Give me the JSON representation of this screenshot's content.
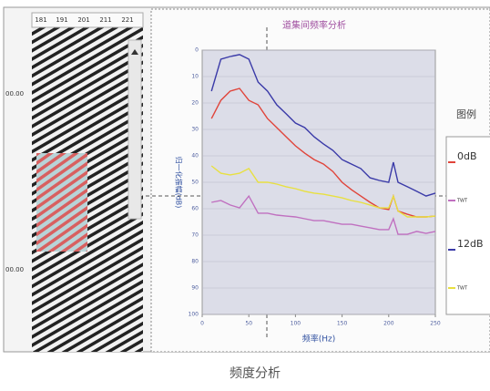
{
  "seismic": {
    "trace_labels": [
      "181",
      "191",
      "201",
      "211",
      "221"
    ],
    "time_labels": [
      "00.00",
      "00.00"
    ]
  },
  "caption": "频度分析",
  "legend_title": "图例",
  "chart_data": {
    "type": "line",
    "title": "道集间频率分析",
    "xlabel": "频率(Hz)",
    "ylabel": "归一化振幅(dB)",
    "x": [
      10,
      20,
      30,
      40,
      50,
      60,
      70,
      80,
      90,
      100,
      110,
      120,
      130,
      140,
      150,
      160,
      170,
      180,
      190,
      200,
      205,
      210,
      220,
      230,
      240,
      250
    ],
    "xlim": [
      0,
      250
    ],
    "xticks": [
      0,
      50,
      100,
      150,
      200,
      250
    ],
    "ylim": [
      0,
      100
    ],
    "y_inverted": true,
    "yticks": [
      0,
      10,
      20,
      30,
      40,
      50,
      60,
      70,
      80,
      90,
      100
    ],
    "grid": true,
    "series": [
      {
        "name": "12dB",
        "color": "#3a3aa8",
        "values": [
          15.5,
          3.4,
          2.4,
          1.7,
          3.4,
          12.1,
          15.5,
          20.7,
          24.1,
          27.6,
          29.3,
          32.8,
          35.5,
          37.9,
          41.4,
          43.1,
          44.8,
          48.3,
          49.3,
          50,
          42.4,
          50,
          51.7,
          53.4,
          55.2,
          54.1
        ]
      },
      {
        "name": "0dB",
        "color": "#e0443a",
        "values": [
          25.9,
          19.0,
          15.5,
          14.5,
          19.0,
          20.7,
          25.9,
          29.3,
          32.8,
          36.2,
          39.0,
          41.4,
          43.1,
          45.9,
          50.0,
          52.8,
          55.2,
          57.6,
          59.7,
          60.3,
          55.2,
          60.9,
          62.1,
          63.1,
          63.1,
          62.8
        ]
      },
      {
        "name": "TWT",
        "color": "#e8e040",
        "values": [
          43.8,
          46.6,
          47.2,
          46.6,
          44.8,
          50,
          50,
          50.7,
          51.7,
          52.4,
          53.4,
          54.1,
          54.5,
          55.2,
          55.9,
          56.9,
          57.6,
          58.6,
          59.7,
          59.7,
          55.2,
          60.9,
          63.1,
          63.1,
          63.1,
          62.8
        ]
      },
      {
        "name": "TWT",
        "color": "#c070c0",
        "values": [
          57.6,
          56.9,
          58.6,
          59.7,
          55.2,
          61.7,
          61.7,
          62.4,
          62.8,
          63.1,
          63.8,
          64.5,
          64.5,
          65.2,
          65.9,
          65.9,
          66.6,
          67.2,
          67.9,
          67.9,
          63.8,
          69.7,
          69.7,
          68.6,
          69.3,
          68.6
        ]
      }
    ]
  }
}
